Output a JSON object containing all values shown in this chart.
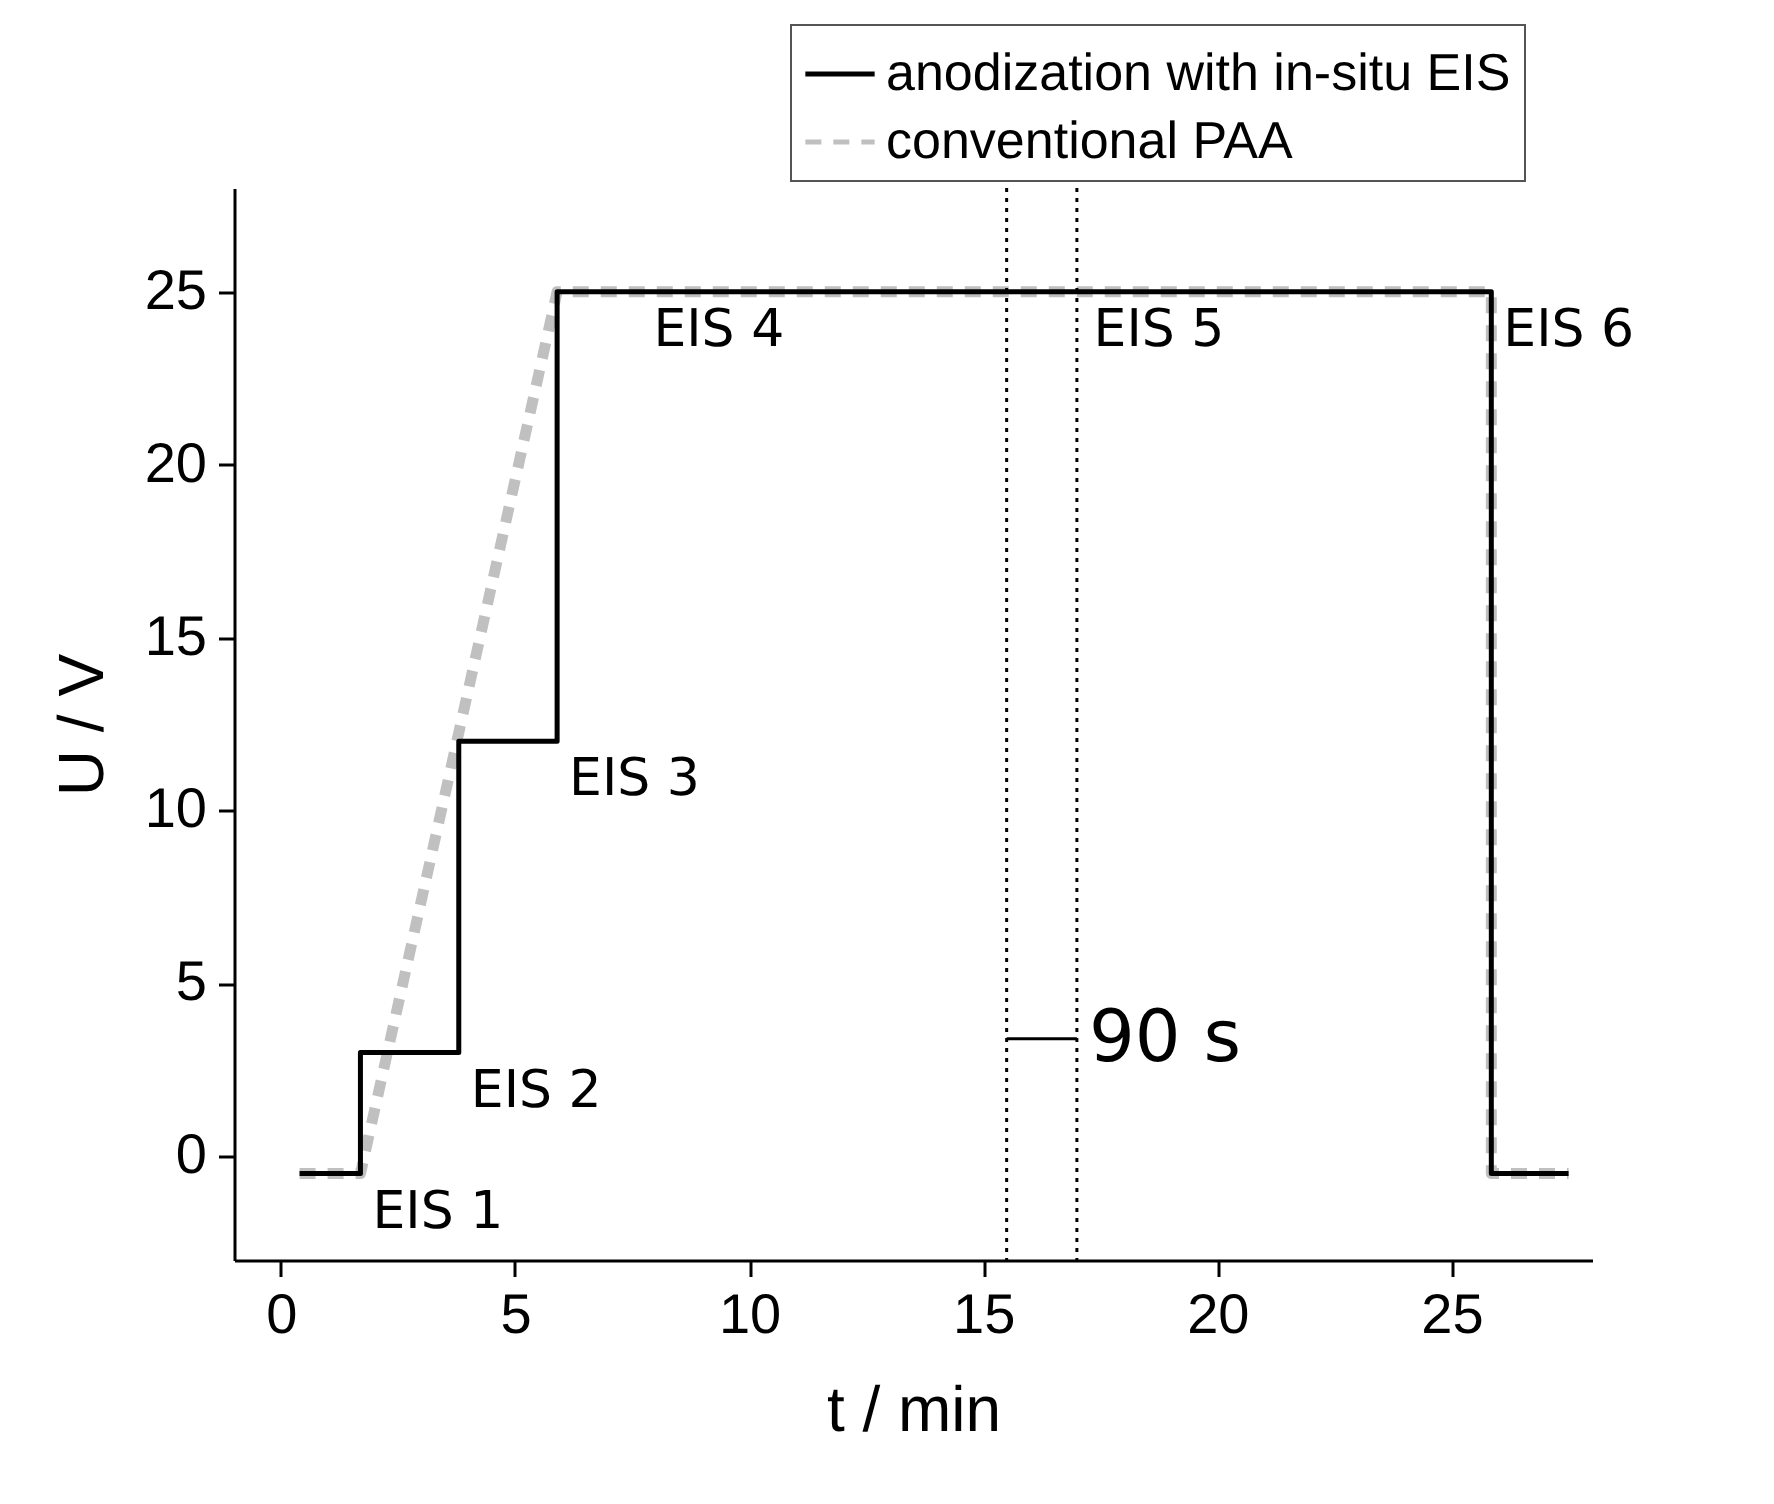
{
  "chart_data": {
    "type": "line",
    "xlabel": "t / min",
    "ylabel": "U / V",
    "xlim": [
      -1,
      28
    ],
    "xticks": [
      0,
      5,
      10,
      15,
      20,
      25
    ],
    "ylim": [
      -3,
      28
    ],
    "yticks": [
      0,
      5,
      10,
      15,
      20,
      25
    ],
    "grid": false,
    "legend": "top right",
    "series": [
      {
        "name": "anodization with in-situ EIS",
        "color": "#000000",
        "line_style": "solid",
        "x": [
          0.4,
          1.7,
          1.7,
          3.8,
          3.8,
          5.9,
          5.9,
          25.85,
          25.85,
          27.5
        ],
        "values": [
          -0.5,
          -0.5,
          3,
          3,
          12,
          12,
          25,
          25,
          -0.5,
          -0.5
        ]
      },
      {
        "name": "conventional PAA",
        "color": "#c0c0c0",
        "line_style": "dashed",
        "x": [
          0.4,
          1.7,
          5.9,
          25.85,
          25.85,
          27.5
        ],
        "values": [
          -0.5,
          -0.5,
          25,
          25,
          -0.5,
          -0.5
        ]
      }
    ],
    "ref_lines": [
      {
        "axis": "x",
        "value": 15.5,
        "color": "#000000",
        "line_style": "dotted"
      },
      {
        "axis": "x",
        "value": 17,
        "color": "#000000",
        "line_style": "dotted"
      }
    ],
    "annotations": [
      {
        "text": "EIS 1",
        "x": 1.7,
        "y": -0.5
      },
      {
        "text": "EIS 2",
        "x": 3.8,
        "y": 3
      },
      {
        "text": "EIS 3",
        "x": 5.9,
        "y": 12
      },
      {
        "text": "EIS 4",
        "x": 7.7,
        "y": 25
      },
      {
        "text": "EIS 5",
        "x": 17.1,
        "y": 25
      },
      {
        "text": "EIS 6",
        "x": 25.85,
        "y": 25
      },
      {
        "text": "90 s",
        "x": 17,
        "y": 3.4
      }
    ]
  }
}
